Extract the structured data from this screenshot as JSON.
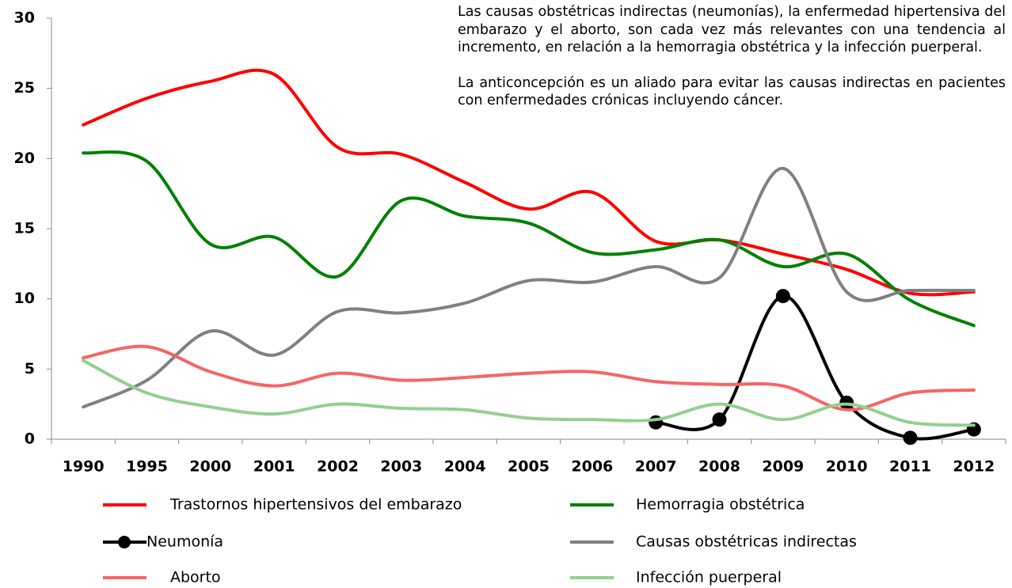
{
  "chart_data": {
    "type": "line",
    "annotations": [
      "Las causas obstétricas indirectas (neumonías), la enfermedad hipertensiva del embarazo y el aborto, son cada vez más relevantes con una tendencia al incremento, en relación a la hemorragia obstétrica y la infección  puerperal.",
      "La anticoncepción es un aliado para evitar las causas indirectas en pacientes con enfermedades crónicas incluyendo cáncer."
    ],
    "categories": [
      "1990",
      "1995",
      "2000",
      "2001",
      "2002",
      "2003",
      "2004",
      "2005",
      "2006",
      "2007",
      "2008",
      "2009",
      "2010",
      "2011",
      "2012"
    ],
    "ylim": [
      0,
      30
    ],
    "yticks": [
      0,
      5,
      10,
      15,
      20,
      25,
      30
    ],
    "series": [
      {
        "name": " Trastornos hipertensivos del embarazo",
        "color": "#ff0000",
        "values": [
          22.4,
          24.3,
          25.5,
          26.0,
          20.8,
          20.3,
          18.3,
          16.4,
          17.6,
          14.1,
          14.2,
          13.2,
          12.1,
          10.4,
          10.5
        ]
      },
      {
        "name": "Hemorragia obstétrica",
        "color": "#008000",
        "values": [
          20.4,
          19.8,
          13.9,
          14.4,
          11.6,
          17.0,
          15.9,
          15.4,
          13.3,
          13.5,
          14.2,
          12.3,
          13.2,
          9.9,
          8.1
        ]
      },
      {
        "name": "Neumonía",
        "color": "#000000",
        "markers": true,
        "values": [
          null,
          null,
          null,
          null,
          null,
          null,
          null,
          null,
          null,
          1.2,
          1.4,
          10.2,
          2.6,
          0.1,
          0.7
        ]
      },
      {
        "name": "Causas obstétricas indirectas",
        "color": "#808080",
        "values": [
          2.3,
          4.2,
          7.7,
          6.0,
          9.1,
          9.0,
          9.7,
          11.3,
          11.2,
          12.3,
          11.5,
          19.3,
          10.5,
          10.6,
          10.6
        ]
      },
      {
        "name": "Aborto",
        "color": "#f86464",
        "values": [
          5.8,
          6.6,
          4.8,
          3.8,
          4.7,
          4.2,
          4.4,
          4.7,
          4.8,
          4.1,
          3.9,
          3.8,
          2.1,
          3.3,
          3.5
        ]
      },
      {
        "name": "Infección puerperal",
        "color": "#92d08f",
        "values": [
          5.6,
          3.3,
          2.3,
          1.8,
          2.5,
          2.2,
          2.1,
          1.5,
          1.4,
          1.4,
          2.5,
          1.4,
          2.5,
          1.2,
          1.0
        ]
      }
    ]
  }
}
